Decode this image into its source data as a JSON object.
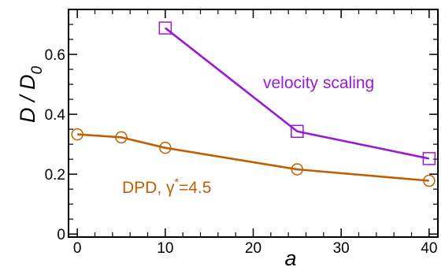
{
  "chart_data": {
    "type": "line",
    "title": "",
    "xlabel": "a",
    "ylabel": "D / D",
    "ylabel_subscript": "0",
    "xlim": [
      -1,
      41
    ],
    "ylim": [
      -0.01,
      0.75
    ],
    "x_ticks": [
      0,
      10,
      20,
      30,
      40
    ],
    "x_tick_labels": [
      "0",
      "10",
      "20",
      "30",
      "40"
    ],
    "y_ticks": [
      0,
      0.2,
      0.4,
      0.6
    ],
    "y_tick_labels": [
      "0",
      "0.2",
      "0.4",
      "0.6"
    ],
    "grid": false,
    "series": [
      {
        "label_parts": {
          "prefix": "DPD, ",
          "symbol": "γ",
          "superscript": "*",
          "suffix": "=4.5"
        },
        "color": "#bf5f00",
        "marker": "circle",
        "x": [
          0,
          5,
          10,
          25,
          40
        ],
        "y": [
          0.333,
          0.323,
          0.288,
          0.216,
          0.178
        ]
      },
      {
        "label": "velocity scaling",
        "color": "#9b19d4",
        "marker": "square",
        "x": [
          10,
          25,
          40
        ],
        "y": [
          0.688,
          0.343,
          0.252
        ]
      }
    ]
  }
}
